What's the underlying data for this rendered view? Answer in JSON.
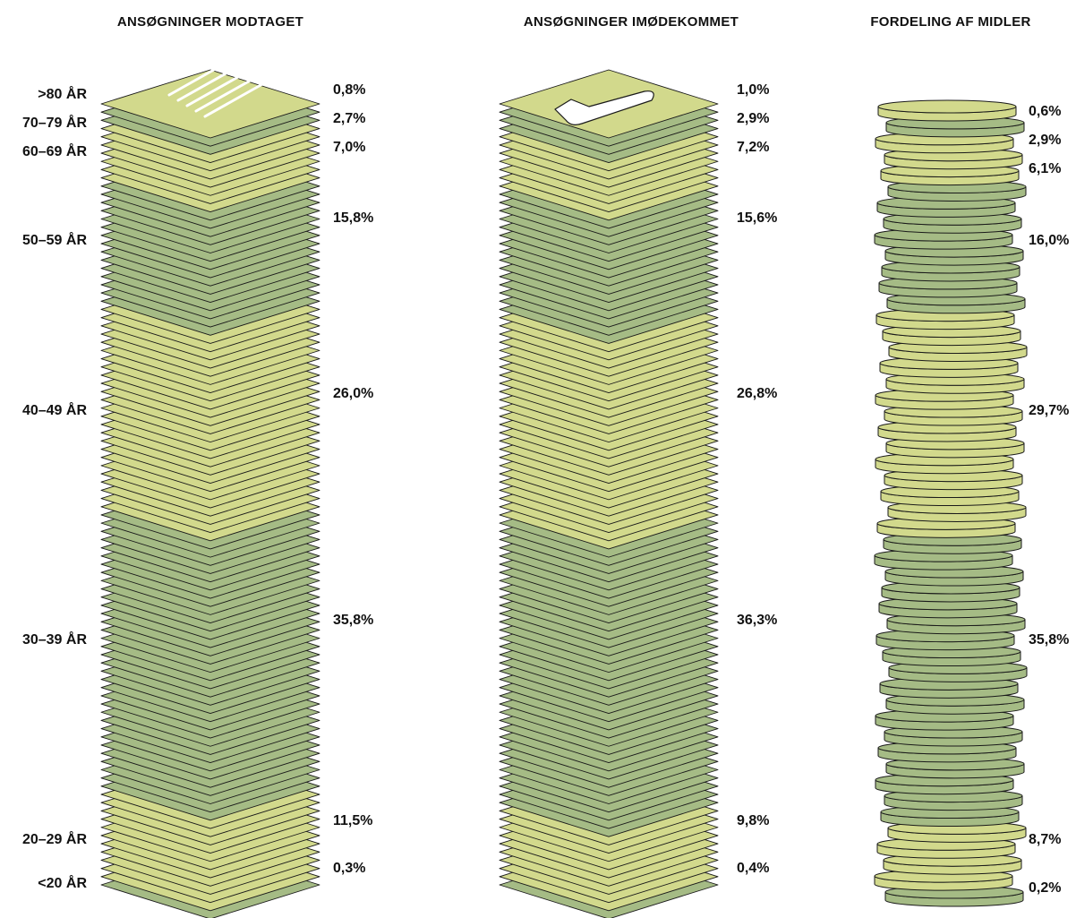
{
  "colors": {
    "light": "#d2d98c",
    "dark": "#a5bb85",
    "stroke": "#1a1a1a",
    "mark": "#ffffff"
  },
  "icons": {
    "received_top": "document-lines-icon",
    "granted_top": "checkmark-icon"
  },
  "chart_data": [
    {
      "type": "bar",
      "title": "ANSØGNINGER MODTAGET",
      "categories": [
        ">80 ÅR",
        "70–79 ÅR",
        "60–69 ÅR",
        "50–59 ÅR",
        "40–49 ÅR",
        "30–39 ÅR",
        "20–29 ÅR",
        "<20 ÅR"
      ],
      "values": [
        0.8,
        2.7,
        7.0,
        15.8,
        26.0,
        35.8,
        11.5,
        0.3
      ],
      "value_labels": [
        "0,8%",
        "2,7%",
        "7,0%",
        "15,8%",
        "26,0%",
        "35,8%",
        "11,5%",
        "0,3%"
      ],
      "unit": "%",
      "stacked": true
    },
    {
      "type": "bar",
      "title": "ANSØGNINGER IMØDEKOMMET",
      "categories": [
        ">80 ÅR",
        "70–79 ÅR",
        "60–69 ÅR",
        "50–59 ÅR",
        "40–49 ÅR",
        "30–39 ÅR",
        "20–29 ÅR",
        "<20 ÅR"
      ],
      "values": [
        1.0,
        2.9,
        7.2,
        15.6,
        26.8,
        36.3,
        9.8,
        0.4
      ],
      "value_labels": [
        "1,0%",
        "2,9%",
        "7,2%",
        "15,6%",
        "26,8%",
        "36,3%",
        "9,8%",
        "0,4%"
      ],
      "unit": "%",
      "stacked": true
    },
    {
      "type": "bar",
      "title": "FORDELING AF MIDLER",
      "categories": [
        ">80 ÅR",
        "70–79 ÅR",
        "60–69 ÅR",
        "50–59 ÅR",
        "40–49 ÅR",
        "30–39 ÅR",
        "20–29 ÅR",
        "<20 ÅR"
      ],
      "values": [
        0.6,
        2.9,
        6.1,
        16.0,
        29.7,
        35.8,
        8.7,
        0.2
      ],
      "value_labels": [
        "0,6%",
        "2,9%",
        "6,1%",
        "16,0%",
        "29,7%",
        "35,8%",
        "8,7%",
        "0,2%"
      ],
      "unit": "%",
      "stacked": true
    }
  ]
}
